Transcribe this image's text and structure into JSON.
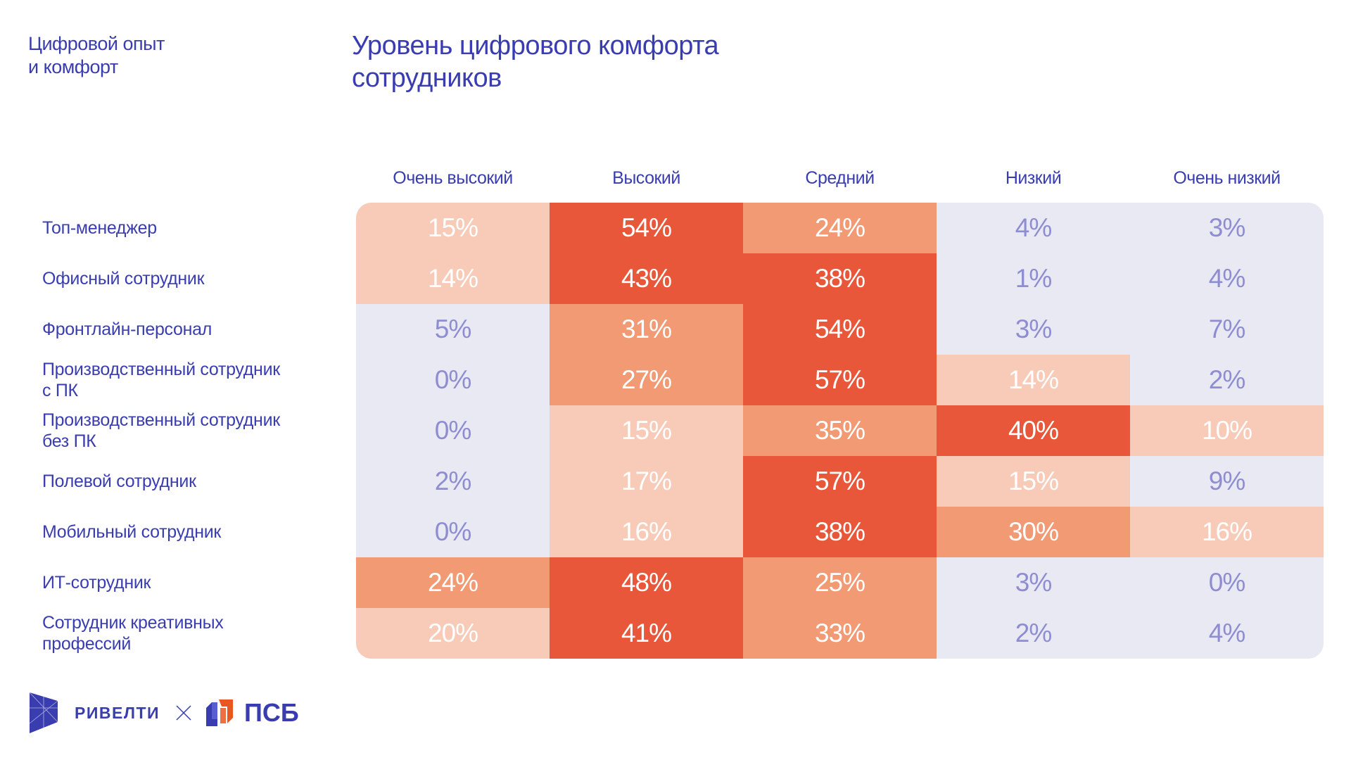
{
  "header": {
    "section_line1": "Цифровой опыт",
    "section_line2": "и комфорт",
    "title_line1": "Уровень цифрового комфорта",
    "title_line2": "сотрудников"
  },
  "footer": {
    "logo1_text": "РИВЕЛТИ",
    "separator": "×",
    "logo2_text": "ПСБ"
  },
  "colors": {
    "dark": "#E9573A",
    "mid": "#F19A74",
    "light": "#F8CBB9",
    "neutral": "#E9E9F4",
    "neutral_text": "#8E8DD2",
    "accent_text": "#FFFFFF",
    "navy": "#3A3DB0",
    "psb_orange": "#E9571E"
  },
  "chart_data": {
    "type": "heatmap",
    "title": "Уровень цифрового комфорта сотрудников",
    "columns": [
      "Очень высокий",
      "Высокий",
      "Средний",
      "Низкий",
      "Очень низкий"
    ],
    "rows": [
      "Топ-менеджер",
      "Офисный сотрудник",
      "Фронтлайн-персонал",
      "Производственный сотрудник\nс ПК",
      "Производственный сотрудник\nбез ПК",
      "Полевой сотрудник",
      "Мобильный сотрудник",
      "ИТ-сотрудник",
      "Сотрудник креативных\nпрофессий"
    ],
    "values": [
      [
        15,
        54,
        24,
        4,
        3
      ],
      [
        14,
        43,
        38,
        1,
        4
      ],
      [
        5,
        31,
        54,
        3,
        7
      ],
      [
        0,
        27,
        57,
        14,
        2
      ],
      [
        0,
        15,
        35,
        40,
        10
      ],
      [
        2,
        17,
        57,
        15,
        9
      ],
      [
        0,
        16,
        38,
        30,
        16
      ],
      [
        24,
        48,
        25,
        3,
        0
      ],
      [
        20,
        41,
        33,
        2,
        4
      ]
    ],
    "unit": "%",
    "color_scale": [
      {
        "min": 0,
        "max": 9,
        "color": "neutral"
      },
      {
        "min": 10,
        "max": 20,
        "color": "light"
      },
      {
        "min": 21,
        "max": 35,
        "color": "mid"
      },
      {
        "min": 36,
        "max": 100,
        "color": "dark"
      }
    ]
  }
}
